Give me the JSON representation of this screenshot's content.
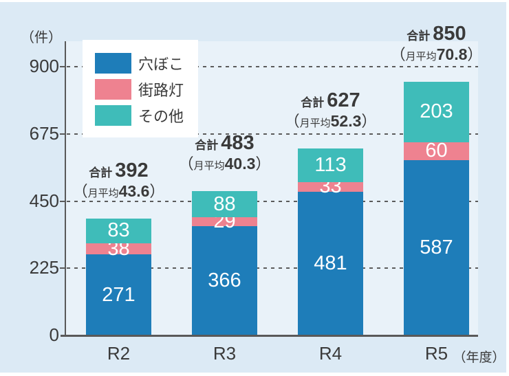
{
  "colors": {
    "background": "#dceaf5",
    "plot_background": "#e9f2f9",
    "axis": "#595959",
    "grid": "#5b5b5b",
    "text": "#3a3a3a",
    "bar_value_text": "#ffffff",
    "legend_background": "#ffffff"
  },
  "chart_data": {
    "type": "bar",
    "stacked": true,
    "unit_label": "（件）",
    "categories": [
      "R2",
      "R3",
      "R4",
      "R5"
    ],
    "category_axis_suffix": "（年度）",
    "y_ticks": [
      0,
      225,
      450,
      675,
      900
    ],
    "ylim": [
      0,
      985
    ],
    "grid": "dashed horizontal gridlines at each y tick",
    "legend_position": "inside top-left",
    "series": [
      {
        "name": "穴ぼこ",
        "color": "#1e7db9",
        "values": [
          271,
          366,
          481,
          587
        ]
      },
      {
        "name": "街路灯",
        "color": "#ee8290",
        "values": [
          38,
          29,
          33,
          60
        ]
      },
      {
        "name": "その他",
        "color": "#3fbcb9",
        "values": [
          83,
          88,
          113,
          203
        ]
      }
    ],
    "totals": [
      {
        "prefix": "合計",
        "total": "392",
        "avg_prefix": "月平均",
        "avg": "43.6"
      },
      {
        "prefix": "合計",
        "total": "483",
        "avg_prefix": "月平均",
        "avg": "40.3"
      },
      {
        "prefix": "合計",
        "total": "627",
        "avg_prefix": "月平均",
        "avg": "52.3"
      },
      {
        "prefix": "合計",
        "total": "850",
        "avg_prefix": "月平均",
        "avg": "70.8"
      }
    ],
    "paren_open": "（",
    "paren_close": "）"
  }
}
